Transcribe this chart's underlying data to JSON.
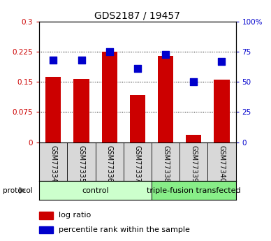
{
  "title": "GDS2187 / 19457",
  "samples": [
    "GSM77334",
    "GSM77335",
    "GSM77336",
    "GSM77337",
    "GSM77338",
    "GSM77339",
    "GSM77340"
  ],
  "log_ratio": [
    0.163,
    0.158,
    0.225,
    0.118,
    0.215,
    0.018,
    0.155
  ],
  "percentile_rank_pct": [
    68,
    68,
    75,
    61,
    73,
    50,
    67
  ],
  "bar_color": "#cc0000",
  "dot_color": "#0000cc",
  "ylim_left": [
    0,
    0.3
  ],
  "ylim_right": [
    0,
    100
  ],
  "yticks_left": [
    0,
    0.075,
    0.15,
    0.225,
    0.3
  ],
  "ytick_labels_left": [
    "0",
    "0.075",
    "0.15",
    "0.225",
    "0.3"
  ],
  "yticks_right": [
    0,
    25,
    50,
    75,
    100
  ],
  "ytick_labels_right": [
    "0",
    "25",
    "50",
    "75",
    "100%"
  ],
  "groups": [
    {
      "label": "control",
      "start": 0,
      "end": 3,
      "color": "#ccffcc"
    },
    {
      "label": "triple-fusion transfected",
      "start": 4,
      "end": 6,
      "color": "#88ee88"
    }
  ],
  "protocol_label": "protocol",
  "legend_items": [
    {
      "label": "log ratio",
      "color": "#cc0000"
    },
    {
      "label": "percentile rank within the sample",
      "color": "#0000cc"
    }
  ],
  "bar_width": 0.55,
  "dot_size": 50,
  "background_xlabel": "#d8d8d8",
  "title_fontsize": 10,
  "tick_fontsize": 7.5,
  "sample_fontsize": 7,
  "group_fontsize": 8,
  "legend_fontsize": 8
}
